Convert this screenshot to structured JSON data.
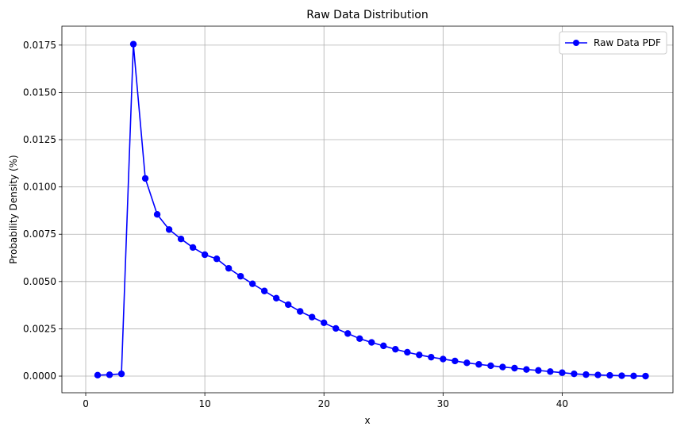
{
  "chart_data": {
    "type": "line",
    "title": "Raw Data Distribution",
    "xlabel": "x",
    "ylabel": "Probability Density (%)",
    "xlim": [
      -2,
      49.3
    ],
    "ylim": [
      -0.00088,
      0.0185
    ],
    "x_ticks": [
      0,
      10,
      20,
      30,
      40
    ],
    "x_tick_labels": [
      "0",
      "10",
      "20",
      "30",
      "40"
    ],
    "y_ticks": [
      0,
      0.0025,
      0.005,
      0.0075,
      0.01,
      0.0125,
      0.015,
      0.0175
    ],
    "y_tick_labels": [
      "0.0000",
      "0.0025",
      "0.0050",
      "0.0075",
      "0.0100",
      "0.0125",
      "0.0150",
      "0.0175"
    ],
    "grid": true,
    "legend_position": "top-right",
    "series": [
      {
        "name": "Raw Data PDF",
        "color": "#0000ff",
        "marker": "circle",
        "x": [
          1,
          2,
          3,
          4,
          5,
          6,
          7,
          8,
          9,
          10,
          11,
          12,
          13,
          14,
          15,
          16,
          17,
          18,
          19,
          20,
          21,
          22,
          23,
          24,
          25,
          26,
          27,
          28,
          29,
          30,
          31,
          32,
          33,
          34,
          35,
          36,
          37,
          38,
          39,
          40,
          41,
          42,
          43,
          44,
          45,
          46,
          47
        ],
        "y": [
          5e-05,
          7e-05,
          0.00012,
          0.01755,
          0.01045,
          0.00855,
          0.00775,
          0.00725,
          0.0068,
          0.00642,
          0.0062,
          0.0057,
          0.00528,
          0.00488,
          0.0045,
          0.00412,
          0.00378,
          0.00342,
          0.00312,
          0.00282,
          0.00252,
          0.00225,
          0.00198,
          0.00178,
          0.0016,
          0.00142,
          0.00126,
          0.00112,
          0.001,
          0.0009,
          0.0008,
          0.0007,
          0.00062,
          0.00055,
          0.00048,
          0.00042,
          0.00035,
          0.0003,
          0.00024,
          0.00018,
          0.00012,
          8e-05,
          6e-05,
          4e-05,
          2e-05,
          1e-05,
          0.0
        ]
      }
    ]
  }
}
